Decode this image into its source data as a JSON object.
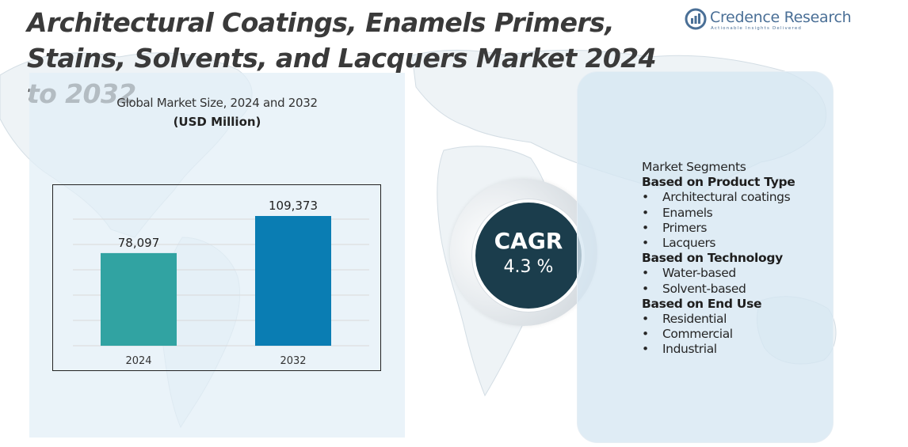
{
  "title": "Architectural Coatings, Enamels Primers, Stains, Solvents, and Lacquers Market 2024 to 2032",
  "brand": {
    "name": "Credence Research",
    "tagline": "Actionable Insights Delivered"
  },
  "chart_data": {
    "type": "bar",
    "title": "Global Market Size,  2024 and 2032",
    "unit": "(USD Million)",
    "categories": [
      "2024",
      "2032"
    ],
    "values": [
      78097,
      109373
    ],
    "value_labels": [
      "78,097",
      "109,373"
    ],
    "colors": [
      "#31a3a2",
      "#0a7db3"
    ],
    "grid": true
  },
  "cagr": {
    "label": "CAGR",
    "value": "4.3 %"
  },
  "segments": {
    "heading": "Market Segments",
    "groups": [
      {
        "title": "Based on Product Type",
        "items": [
          "Architectural coatings",
          "Enamels",
          "Primers",
          "Lacquers"
        ]
      },
      {
        "title": "Based on Technology",
        "items": [
          "Water-based",
          "Solvent-based"
        ]
      },
      {
        "title": "Based on End Use",
        "items": [
          "Residential",
          "Commercial",
          "Industrial"
        ]
      }
    ],
    "bullet": "•"
  }
}
